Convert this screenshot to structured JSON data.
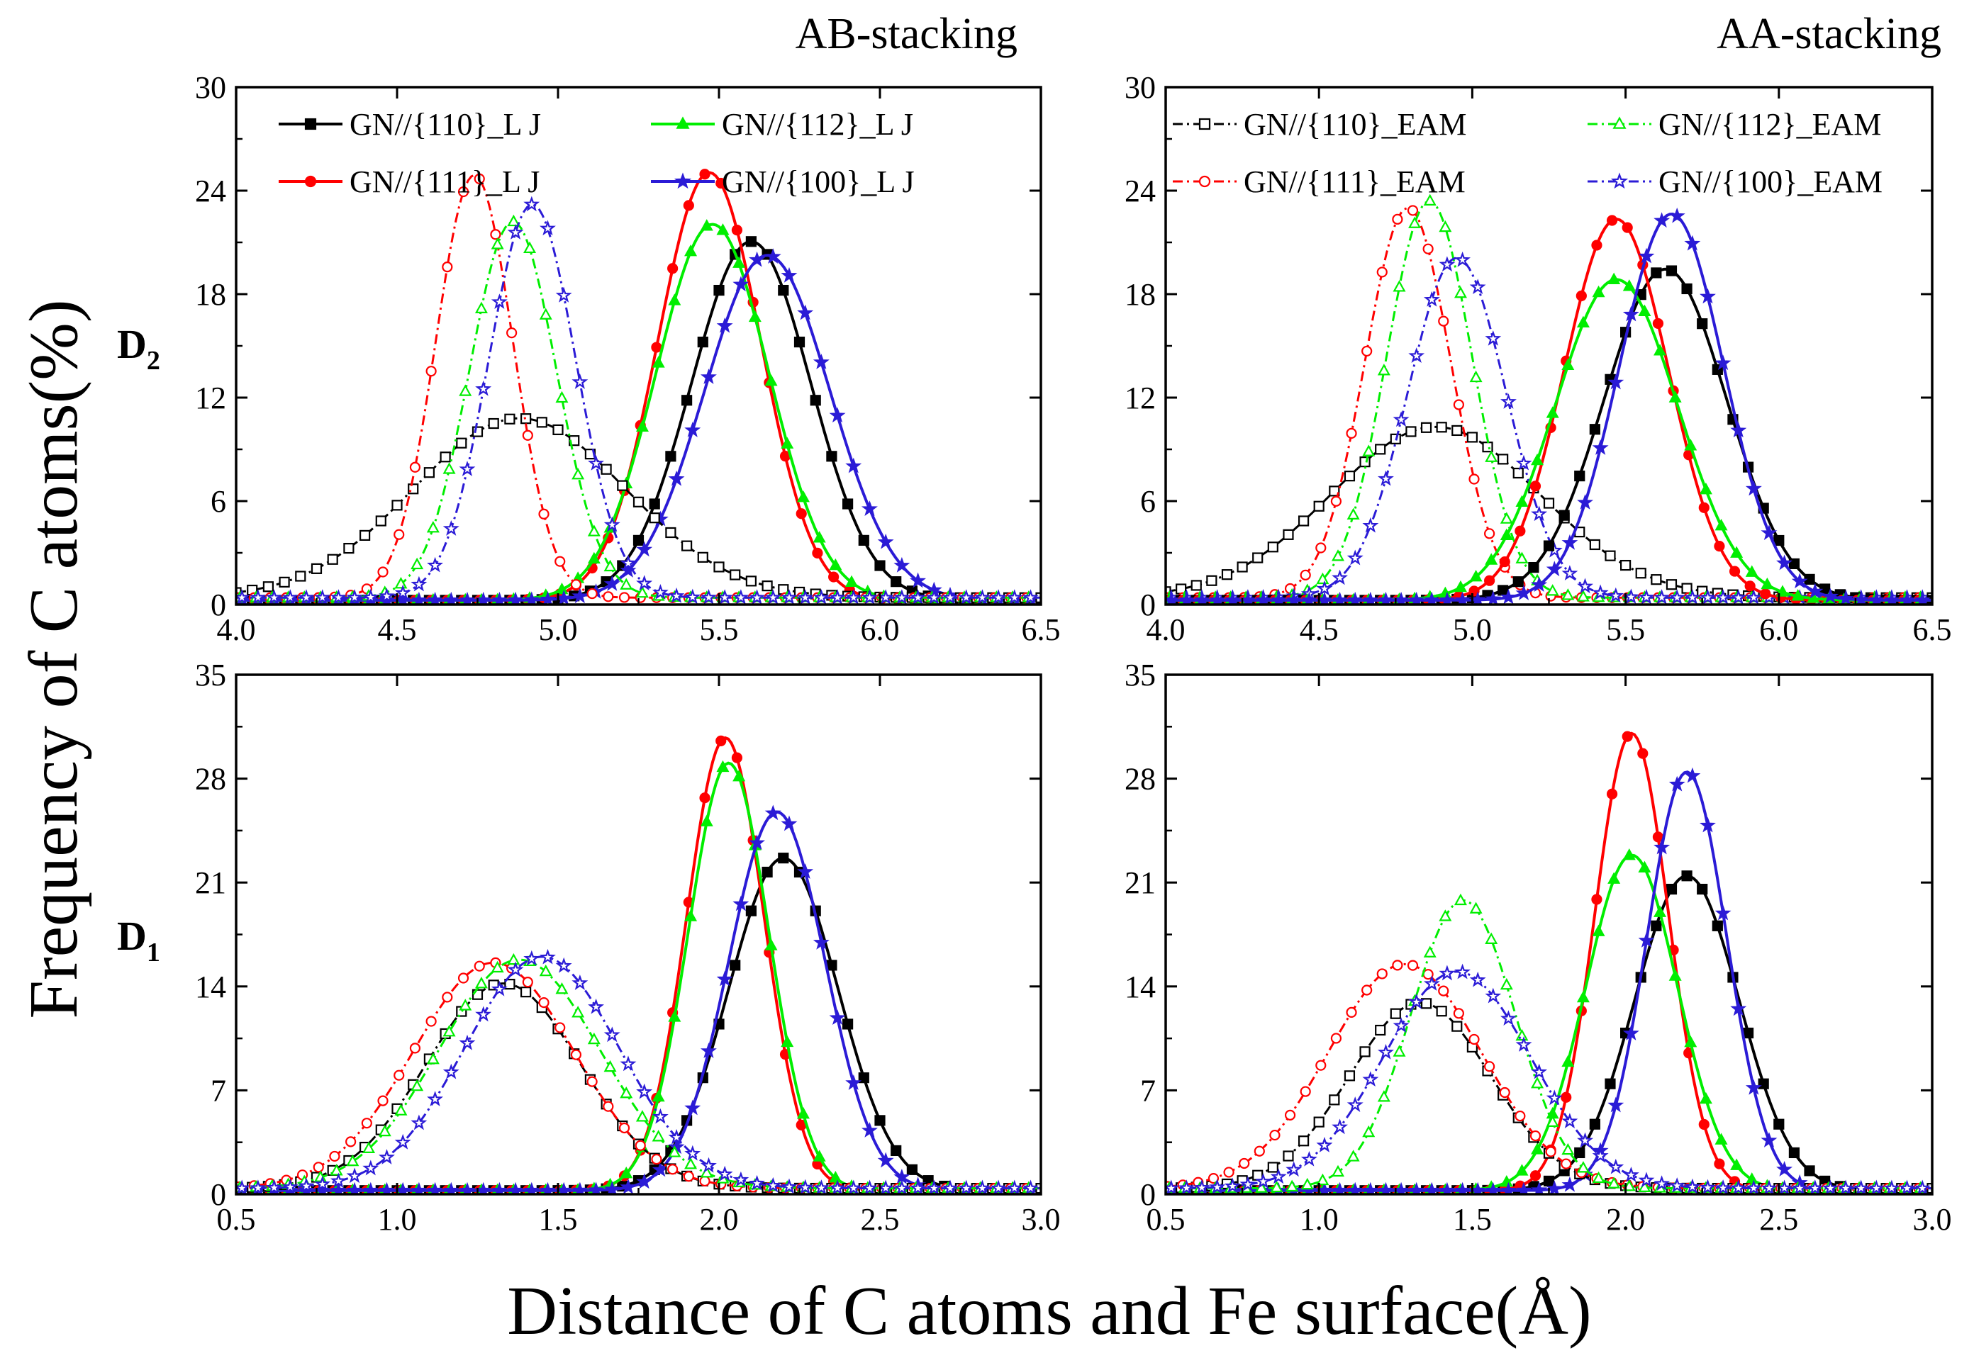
{
  "figure": {
    "title_left": "AB-stacking",
    "title_right": "AA-stacking",
    "ylabel": "Frequency of C atoms(%)",
    "xlabel": "Distance of C atoms and Fe surface(Å)",
    "row_top_label": "D",
    "row_top_sub": "2",
    "row_bottom_label": "D",
    "row_bottom_sub": "1"
  },
  "chart_data": [
    {
      "id": "top-left",
      "type": "line",
      "xlim": [
        4.0,
        6.5
      ],
      "ylim": [
        0,
        30
      ],
      "xticks": [
        4.0,
        4.5,
        5.0,
        5.5,
        6.0,
        6.5
      ],
      "yticks": [
        0,
        6,
        12,
        18,
        24,
        30
      ],
      "xticklabels": [
        "4.0",
        "4.5",
        "5.0",
        "5.5",
        "6.0",
        "6.5"
      ],
      "yticklabels": [
        "0",
        "6",
        "12",
        "18",
        "24",
        "30"
      ],
      "legend": "top",
      "series": [
        {
          "name": "GN//{110}_L J",
          "color": "#000000",
          "dash": "solid",
          "marker": "square",
          "filled": true,
          "gauss": {
            "mu": 5.6,
            "sigma": 0.185,
            "amp": 20.8
          }
        },
        {
          "name": "GN//{111}_L J",
          "color": "#ff0000",
          "dash": "solid",
          "marker": "circle",
          "filled": true,
          "gauss": {
            "mu": 5.47,
            "sigma": 0.16,
            "amp": 24.8
          }
        },
        {
          "name": "GN//{112}_L J",
          "color": "#00ee00",
          "dash": "solid",
          "marker": "triangle",
          "filled": true,
          "gauss": {
            "mu": 5.48,
            "sigma": 0.175,
            "amp": 21.8
          }
        },
        {
          "name": "GN//{100}_L J",
          "color": "#2b1bd6",
          "dash": "solid",
          "marker": "star",
          "filled": true,
          "gauss": {
            "mu": 5.65,
            "sigma": 0.195,
            "amp": 20.0
          }
        },
        {
          "name": "GN//{110}_EAM",
          "color": "#000000",
          "dash": "dashdot",
          "marker": "square",
          "filled": false,
          "gauss": {
            "mu": 4.88,
            "sigma": 0.33,
            "amp": 10.4
          },
          "legend": false
        },
        {
          "name": "GN//{111}_EAM",
          "color": "#ff0000",
          "dash": "dashdot",
          "marker": "circle",
          "filled": false,
          "gauss": {
            "mu": 4.74,
            "sigma": 0.12,
            "amp": 24.5
          },
          "legend": false
        },
        {
          "name": "GN//{112}_EAM",
          "color": "#00ee00",
          "dash": "dashdot",
          "marker": "triangle",
          "filled": false,
          "gauss": {
            "mu": 4.86,
            "sigma": 0.135,
            "amp": 21.8
          },
          "legend": false
        },
        {
          "name": "GN//{100}_EAM",
          "color": "#2b1bd6",
          "dash": "dashdot",
          "marker": "star",
          "filled": false,
          "gauss": {
            "mu": 4.92,
            "sigma": 0.135,
            "amp": 22.8
          },
          "legend": false
        }
      ]
    },
    {
      "id": "top-right",
      "type": "line",
      "xlim": [
        4.0,
        6.5
      ],
      "ylim": [
        0,
        30
      ],
      "xticks": [
        4.0,
        4.5,
        5.0,
        5.5,
        6.0,
        6.5
      ],
      "yticks": [
        0,
        6,
        12,
        18,
        24,
        30
      ],
      "xticklabels": [
        "4.0",
        "4.5",
        "5.0",
        "5.5",
        "6.0",
        "6.5"
      ],
      "yticklabels": [
        "0",
        "6",
        "12",
        "18",
        "24",
        "30"
      ],
      "legend": "top",
      "series": [
        {
          "name": "GN//{110}_EAM",
          "color": "#000000",
          "dash": "dashdot",
          "marker": "square",
          "filled": false,
          "gauss": {
            "mu": 4.88,
            "sigma": 0.34,
            "amp": 9.9
          }
        },
        {
          "name": "GN//{111}_EAM",
          "color": "#ff0000",
          "dash": "dashdot",
          "marker": "circle",
          "filled": false,
          "gauss": {
            "mu": 4.79,
            "sigma": 0.14,
            "amp": 22.6
          }
        },
        {
          "name": "GN//{112}_EAM",
          "color": "#00ee00",
          "dash": "dashdot",
          "marker": "triangle",
          "filled": false,
          "gauss": {
            "mu": 4.86,
            "sigma": 0.14,
            "amp": 23.0
          }
        },
        {
          "name": "GN//{100}_EAM",
          "color": "#2b1bd6",
          "dash": "dashdot",
          "marker": "star",
          "filled": false,
          "gauss": {
            "mu": 4.95,
            "sigma": 0.16,
            "amp": 19.7
          }
        },
        {
          "name": "GN//{110}_L J",
          "color": "#000000",
          "dash": "solid",
          "marker": "square",
          "filled": true,
          "gauss": {
            "mu": 5.63,
            "sigma": 0.2,
            "amp": 19.2
          },
          "legend": false
        },
        {
          "name": "GN//{111}_L J",
          "color": "#ff0000",
          "dash": "solid",
          "marker": "circle",
          "filled": true,
          "gauss": {
            "mu": 5.47,
            "sigma": 0.17,
            "amp": 22.1
          },
          "legend": false
        },
        {
          "name": "GN//{112}_L J",
          "color": "#00ee00",
          "dash": "solid",
          "marker": "triangle",
          "filled": true,
          "gauss": {
            "mu": 5.47,
            "sigma": 0.2,
            "amp": 18.6
          },
          "legend": false
        },
        {
          "name": "GN//{100}_L J",
          "color": "#2b1bd6",
          "dash": "solid",
          "marker": "star",
          "filled": true,
          "gauss": {
            "mu": 5.65,
            "sigma": 0.17,
            "amp": 22.4
          },
          "legend": false
        }
      ]
    },
    {
      "id": "bottom-left",
      "type": "line",
      "xlim": [
        0.5,
        3.0
      ],
      "ylim": [
        0,
        35
      ],
      "xticks": [
        0.5,
        1.0,
        1.5,
        2.0,
        2.5,
        3.0
      ],
      "yticks": [
        0,
        7,
        14,
        21,
        28,
        35
      ],
      "xticklabels": [
        "0.5",
        "1.0",
        "1.5",
        "2.0",
        "2.5",
        "3.0"
      ],
      "yticklabels": [
        "0",
        "7",
        "14",
        "21",
        "28",
        "35"
      ],
      "legend": "none",
      "series": [
        {
          "name": "GN//{110}_L J",
          "color": "#000000",
          "dash": "solid",
          "marker": "square",
          "filled": true,
          "gauss": {
            "mu": 2.2,
            "sigma": 0.17,
            "amp": 22.4
          }
        },
        {
          "name": "GN//{111}_L J",
          "color": "#ff0000",
          "dash": "solid",
          "marker": "circle",
          "filled": true,
          "gauss": {
            "mu": 2.02,
            "sigma": 0.12,
            "amp": 30.5
          }
        },
        {
          "name": "GN//{112}_L J",
          "color": "#00ee00",
          "dash": "solid",
          "marker": "triangle",
          "filled": true,
          "gauss": {
            "mu": 2.03,
            "sigma": 0.125,
            "amp": 28.8
          }
        },
        {
          "name": "GN//{100}_L J",
          "color": "#2b1bd6",
          "dash": "solid",
          "marker": "star",
          "filled": true,
          "gauss": {
            "mu": 2.18,
            "sigma": 0.15,
            "amp": 25.5
          }
        },
        {
          "name": "GN//{110}_EAM",
          "color": "#000000",
          "dash": "dashdot",
          "marker": "square",
          "filled": false,
          "gauss": {
            "mu": 1.33,
            "sigma": 0.24,
            "amp": 13.8
          }
        },
        {
          "name": "GN//{111}_EAM",
          "color": "#ff0000",
          "dash": "dashdot",
          "marker": "circle",
          "filled": false,
          "gauss": {
            "mu": 1.3,
            "sigma": 0.25,
            "amp": 15.2
          }
        },
        {
          "name": "GN//{112}_EAM",
          "color": "#00ee00",
          "dash": "dashdot",
          "marker": "triangle",
          "filled": false,
          "gauss": {
            "mu": 1.38,
            "sigma": 0.25,
            "amp": 15.4
          }
        },
        {
          "name": "GN//{100}_EAM",
          "color": "#2b1bd6",
          "dash": "dashdot",
          "marker": "star",
          "filled": false,
          "gauss": {
            "mu": 1.45,
            "sigma": 0.24,
            "amp": 15.6
          }
        }
      ]
    },
    {
      "id": "bottom-right",
      "type": "line",
      "xlim": [
        0.5,
        3.0
      ],
      "ylim": [
        0,
        35
      ],
      "xticks": [
        0.5,
        1.0,
        1.5,
        2.0,
        2.5,
        3.0
      ],
      "yticks": [
        0,
        7,
        14,
        21,
        28,
        35
      ],
      "xticklabels": [
        "0.5",
        "1.0",
        "1.5",
        "2.0",
        "2.5",
        "3.0"
      ],
      "yticklabels": [
        "0",
        "7",
        "14",
        "21",
        "28",
        "35"
      ],
      "legend": "none",
      "series": [
        {
          "name": "GN//{110}_L J",
          "color": "#000000",
          "dash": "solid",
          "marker": "square",
          "filled": true,
          "gauss": {
            "mu": 2.2,
            "sigma": 0.17,
            "amp": 21.2
          }
        },
        {
          "name": "GN//{111}_L J",
          "color": "#ff0000",
          "dash": "solid",
          "marker": "circle",
          "filled": true,
          "gauss": {
            "mu": 2.02,
            "sigma": 0.12,
            "amp": 30.8
          }
        },
        {
          "name": "GN//{112}_L J",
          "color": "#00ee00",
          "dash": "solid",
          "marker": "triangle",
          "filled": true,
          "gauss": {
            "mu": 2.02,
            "sigma": 0.15,
            "amp": 22.6
          }
        },
        {
          "name": "GN//{100}_L J",
          "color": "#2b1bd6",
          "dash": "solid",
          "marker": "star",
          "filled": true,
          "gauss": {
            "mu": 2.2,
            "sigma": 0.13,
            "amp": 28.2
          }
        },
        {
          "name": "GN//{110}_EAM",
          "color": "#000000",
          "dash": "dashdot",
          "marker": "square",
          "filled": false,
          "gauss": {
            "mu": 1.33,
            "sigma": 0.23,
            "amp": 12.5
          }
        },
        {
          "name": "GN//{111}_EAM",
          "color": "#ff0000",
          "dash": "dashdot",
          "marker": "circle",
          "filled": false,
          "gauss": {
            "mu": 1.28,
            "sigma": 0.25,
            "amp": 15.1
          }
        },
        {
          "name": "GN//{112}_EAM",
          "color": "#00ee00",
          "dash": "dashdot",
          "marker": "triangle",
          "filled": false,
          "gauss": {
            "mu": 1.47,
            "sigma": 0.17,
            "amp": 19.4
          }
        },
        {
          "name": "GN//{100}_EAM",
          "color": "#2b1bd6",
          "dash": "dashdot",
          "marker": "star",
          "filled": false,
          "gauss": {
            "mu": 1.45,
            "sigma": 0.24,
            "amp": 14.6
          }
        }
      ]
    }
  ]
}
